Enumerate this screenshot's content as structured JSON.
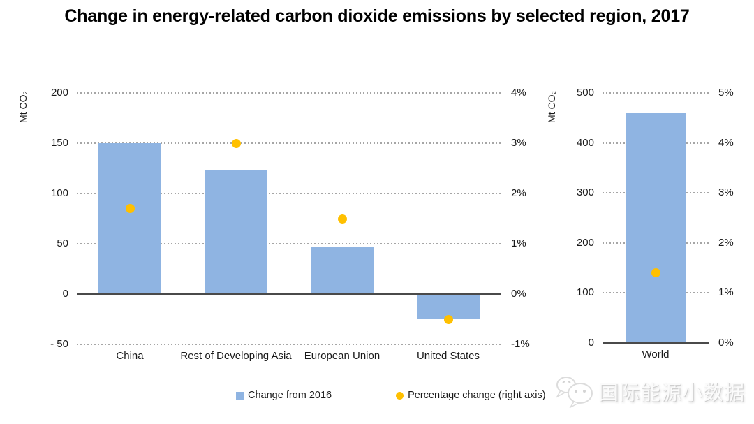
{
  "title": "Change in energy-related carbon dioxide emissions by selected region, 2017",
  "colors": {
    "bar": "#8FB4E2",
    "dot": "#FFC000",
    "grid": "#A6A6A6",
    "axis": "#4A4A4A",
    "text": "#1A1A1A",
    "title": "#000000"
  },
  "legend": {
    "items": [
      {
        "marker": "square",
        "label": "Change from 2016"
      },
      {
        "marker": "circle",
        "label": "Percentage change (right axis)"
      }
    ]
  },
  "watermark": {
    "icon": "wechat-icon",
    "text": "国际能源小数据"
  },
  "chart_data": [
    {
      "name": "selected-regions",
      "type": "bar",
      "dual_axis": true,
      "grid": "dotted horizontal gridlines, solid zero line",
      "categories": [
        "China",
        "Rest of Developing Asia",
        "European Union",
        "United States"
      ],
      "series": [
        {
          "name": "Change from 2016",
          "type": "bar",
          "axis": "left",
          "unit": "Mt CO₂",
          "values": [
            150,
            123,
            47,
            -25
          ]
        },
        {
          "name": "Percentage change (right axis)",
          "type": "scatter",
          "axis": "right",
          "unit": "%",
          "values": [
            1.7,
            3.0,
            1.5,
            -0.5
          ]
        }
      ],
      "left_axis": {
        "label": "Mt CO₂",
        "range": [
          -50,
          200
        ],
        "tick_labels": [
          "200",
          "150",
          "100",
          "50",
          "0",
          "- 50"
        ],
        "tick_values": [
          200,
          150,
          100,
          50,
          0,
          -50
        ]
      },
      "right_axis": {
        "label": "",
        "range": [
          -1,
          4
        ],
        "tick_labels": [
          "4%",
          "3%",
          "2%",
          "1%",
          "0%",
          "-1%"
        ],
        "tick_values": [
          4,
          3,
          2,
          1,
          0,
          -1
        ]
      }
    },
    {
      "name": "world",
      "type": "bar",
      "dual_axis": true,
      "grid": "dotted horizontal gridlines, solid zero line",
      "categories": [
        "World"
      ],
      "series": [
        {
          "name": "Change from 2016",
          "type": "bar",
          "axis": "left",
          "unit": "Mt CO₂",
          "values": [
            460
          ]
        },
        {
          "name": "Percentage change (right axis)",
          "type": "scatter",
          "axis": "right",
          "unit": "%",
          "values": [
            1.4
          ]
        }
      ],
      "left_axis": {
        "label": "Mt CO₂",
        "range": [
          0,
          500
        ],
        "tick_labels": [
          "500",
          "400",
          "300",
          "200",
          "100",
          "0"
        ],
        "tick_values": [
          500,
          400,
          300,
          200,
          100,
          0
        ]
      },
      "right_axis": {
        "label": "",
        "range": [
          0,
          5
        ],
        "tick_labels": [
          "5%",
          "4%",
          "3%",
          "2%",
          "1%",
          "0%"
        ],
        "tick_values": [
          5,
          4,
          3,
          2,
          1,
          0
        ]
      }
    }
  ]
}
